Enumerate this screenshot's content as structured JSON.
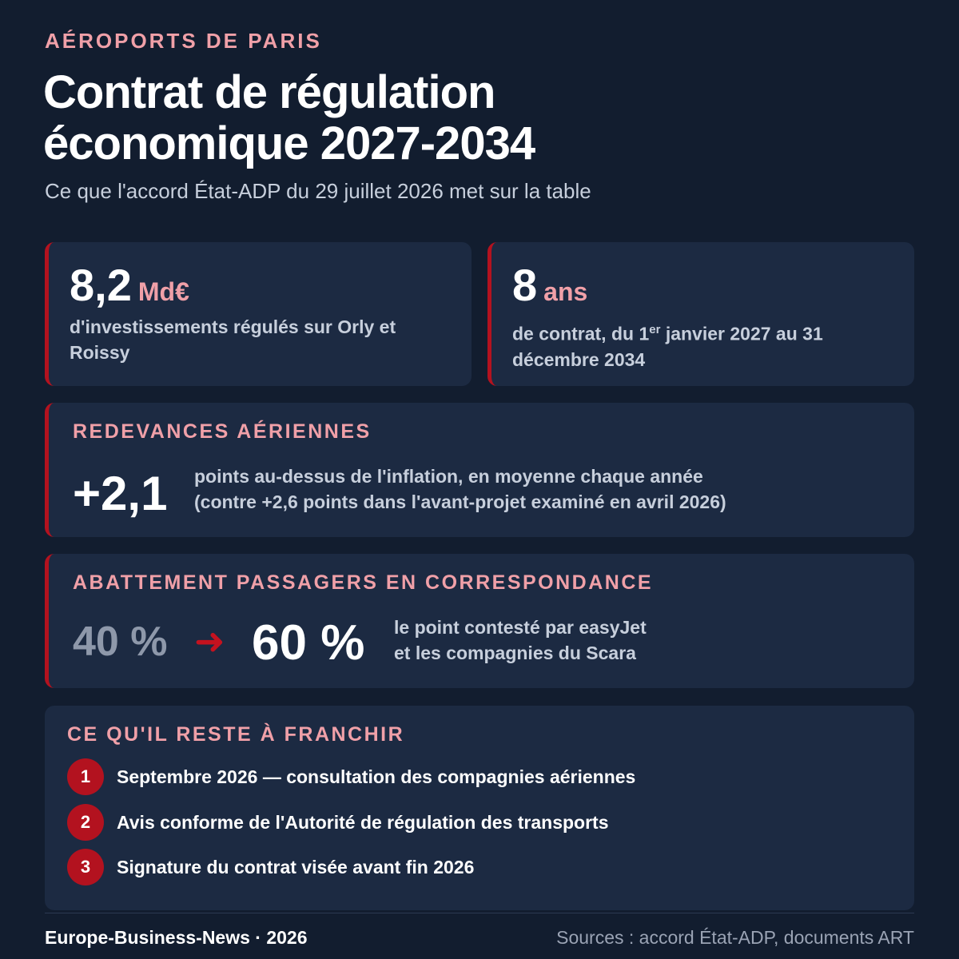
{
  "header": {
    "kicker": "AÉROPORTS DE PARIS",
    "title_line1": "Contrat de régulation",
    "title_line2": "économique 2027-2034",
    "subtitle": "Ce que l'accord État-ADP du 29 juillet 2026 met sur la table"
  },
  "stats": [
    {
      "value": "8,2",
      "unit": "Md€",
      "description": "d'investissements régulés sur Orly et Roissy"
    },
    {
      "value": "8",
      "unit": "ans",
      "description_before": "de contrat, du 1",
      "description_sup": "er",
      "description_after": " janvier 2027 au 31 décembre 2034"
    }
  ],
  "redevances": {
    "title": "REDEVANCES AÉRIENNES",
    "value": "+2,1",
    "line1": "points au-dessus de l'inflation, en moyenne chaque année",
    "line2": "(contre +2,6 points dans l'avant-projet examiné en avril 2026)"
  },
  "abattement": {
    "title": "ABATTEMENT PASSAGERS EN CORRESPONDANCE",
    "from": "40 %",
    "arrow": "➜",
    "to": "60 %",
    "line1": "le point contesté par easyJet",
    "line2": "et les compagnies du Scara"
  },
  "steps": {
    "title": "CE QU'IL RESTE À FRANCHIR",
    "items": [
      {
        "num": "1",
        "text": "Septembre 2026 — consultation des compagnies aériennes"
      },
      {
        "num": "2",
        "text": "Avis conforme de l'Autorité de régulation des transports"
      },
      {
        "num": "3",
        "text": "Signature du contrat visée avant fin 2026"
      }
    ]
  },
  "footer": {
    "brand": "Europe-Business-News · 2026",
    "sources": "Sources : accord État-ADP, documents ART"
  },
  "colors": {
    "background": "#121d2f",
    "card": "#1c2a42",
    "accent_red": "#b3121f",
    "accent_pink": "#f0a0a8"
  }
}
